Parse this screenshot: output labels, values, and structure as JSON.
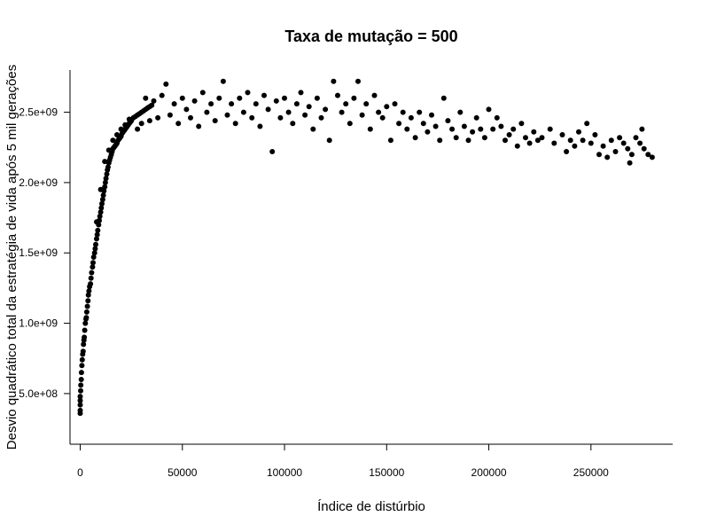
{
  "chart_data": {
    "type": "scatter",
    "title": "Taxa de mutação = 500",
    "xlabel": "Índice de distúrbio",
    "ylabel": "Desvio quadrático total da estratégia de vida após 5 mil gerações",
    "xlim": [
      -5000,
      290000
    ],
    "ylim": [
      140000000,
      2800000000
    ],
    "x_ticks": [
      0,
      50000,
      100000,
      150000,
      200000,
      250000
    ],
    "x_tick_labels": [
      "0",
      "50000",
      "100000",
      "150000",
      "200000",
      "250000"
    ],
    "y_ticks": [
      500000000,
      1000000000,
      1500000000,
      2000000000,
      2500000000
    ],
    "y_tick_labels": [
      "5.0e+08",
      "1.0e+09",
      "1.5e+09",
      "2.0e+09",
      "2.5e+09"
    ],
    "grid": false,
    "legend": "none",
    "marker_color": "#000000",
    "series": [
      {
        "points": [
          [
            0,
            360000000
          ],
          [
            0,
            380000000
          ],
          [
            0,
            420000000
          ],
          [
            0,
            450000000
          ],
          [
            0,
            480000000
          ],
          [
            200,
            520000000
          ],
          [
            300,
            560000000
          ],
          [
            500,
            600000000
          ],
          [
            600,
            650000000
          ],
          [
            800,
            700000000
          ],
          [
            1000,
            740000000
          ],
          [
            1200,
            780000000
          ],
          [
            1400,
            800000000
          ],
          [
            1600,
            850000000
          ],
          [
            1800,
            880000000
          ],
          [
            2000,
            900000000
          ],
          [
            2200,
            950000000
          ],
          [
            2500,
            1000000000
          ],
          [
            2800,
            1030000000
          ],
          [
            3000,
            1040000000
          ],
          [
            3200,
            1080000000
          ],
          [
            3500,
            1120000000
          ],
          [
            3800,
            1160000000
          ],
          [
            4000,
            1200000000
          ],
          [
            4300,
            1230000000
          ],
          [
            4600,
            1260000000
          ],
          [
            5000,
            1280000000
          ],
          [
            5300,
            1320000000
          ],
          [
            5600,
            1360000000
          ],
          [
            6000,
            1400000000
          ],
          [
            6300,
            1430000000
          ],
          [
            6600,
            1470000000
          ],
          [
            7000,
            1500000000
          ],
          [
            7300,
            1530000000
          ],
          [
            7600,
            1560000000
          ],
          [
            8000,
            1600000000
          ],
          [
            8300,
            1630000000
          ],
          [
            8600,
            1660000000
          ],
          [
            9000,
            1700000000
          ],
          [
            9300,
            1730000000
          ],
          [
            9600,
            1760000000
          ],
          [
            10000,
            1790000000
          ],
          [
            10300,
            1820000000
          ],
          [
            10600,
            1850000000
          ],
          [
            11000,
            1880000000
          ],
          [
            11300,
            1910000000
          ],
          [
            11600,
            1940000000
          ],
          [
            12000,
            1970000000
          ],
          [
            12300,
            2000000000
          ],
          [
            12600,
            2030000000
          ],
          [
            13000,
            2060000000
          ],
          [
            13300,
            2090000000
          ],
          [
            13600,
            2110000000
          ],
          [
            14000,
            2140000000
          ],
          [
            14400,
            2160000000
          ],
          [
            14800,
            2180000000
          ],
          [
            15200,
            2200000000
          ],
          [
            15600,
            2220000000
          ],
          [
            16000,
            2240000000
          ],
          [
            16500,
            2250000000
          ],
          [
            17000,
            2260000000
          ],
          [
            17500,
            2270000000
          ],
          [
            18000,
            2280000000
          ],
          [
            18500,
            2300000000
          ],
          [
            19000,
            2310000000
          ],
          [
            19500,
            2320000000
          ],
          [
            20000,
            2330000000
          ],
          [
            20500,
            2350000000
          ],
          [
            21000,
            2360000000
          ],
          [
            21500,
            2370000000
          ],
          [
            22000,
            2380000000
          ],
          [
            22500,
            2390000000
          ],
          [
            23000,
            2400000000
          ],
          [
            23500,
            2410000000
          ],
          [
            24000,
            2420000000
          ],
          [
            24500,
            2430000000
          ],
          [
            25000,
            2440000000
          ],
          [
            8000,
            1720000000
          ],
          [
            10000,
            1950000000
          ],
          [
            12000,
            2150000000
          ],
          [
            14000,
            2230000000
          ],
          [
            16000,
            2300000000
          ],
          [
            18000,
            2340000000
          ],
          [
            20000,
            2380000000
          ],
          [
            22000,
            2410000000
          ],
          [
            24000,
            2450000000
          ],
          [
            26000,
            2460000000
          ],
          [
            27000,
            2470000000
          ],
          [
            28000,
            2480000000
          ],
          [
            29000,
            2490000000
          ],
          [
            30000,
            2500000000
          ],
          [
            31000,
            2510000000
          ],
          [
            32000,
            2520000000
          ],
          [
            33000,
            2530000000
          ],
          [
            34000,
            2540000000
          ],
          [
            35000,
            2550000000
          ],
          [
            28000,
            2380000000
          ],
          [
            30000,
            2420000000
          ],
          [
            32000,
            2600000000
          ],
          [
            34000,
            2440000000
          ],
          [
            36000,
            2580000000
          ],
          [
            38000,
            2460000000
          ],
          [
            40000,
            2620000000
          ],
          [
            42000,
            2700000000
          ],
          [
            44000,
            2480000000
          ],
          [
            46000,
            2560000000
          ],
          [
            48000,
            2420000000
          ],
          [
            50000,
            2600000000
          ],
          [
            52000,
            2520000000
          ],
          [
            54000,
            2460000000
          ],
          [
            56000,
            2580000000
          ],
          [
            58000,
            2400000000
          ],
          [
            60000,
            2640000000
          ],
          [
            62000,
            2500000000
          ],
          [
            64000,
            2560000000
          ],
          [
            66000,
            2440000000
          ],
          [
            68000,
            2600000000
          ],
          [
            70000,
            2720000000
          ],
          [
            72000,
            2480000000
          ],
          [
            74000,
            2560000000
          ],
          [
            76000,
            2420000000
          ],
          [
            78000,
            2600000000
          ],
          [
            80000,
            2500000000
          ],
          [
            82000,
            2640000000
          ],
          [
            84000,
            2460000000
          ],
          [
            86000,
            2560000000
          ],
          [
            88000,
            2400000000
          ],
          [
            90000,
            2620000000
          ],
          [
            92000,
            2520000000
          ],
          [
            94000,
            2220000000
          ],
          [
            96000,
            2580000000
          ],
          [
            98000,
            2460000000
          ],
          [
            100000,
            2600000000
          ],
          [
            102000,
            2500000000
          ],
          [
            104000,
            2420000000
          ],
          [
            106000,
            2560000000
          ],
          [
            108000,
            2640000000
          ],
          [
            110000,
            2480000000
          ],
          [
            112000,
            2540000000
          ],
          [
            114000,
            2380000000
          ],
          [
            116000,
            2600000000
          ],
          [
            118000,
            2460000000
          ],
          [
            120000,
            2520000000
          ],
          [
            122000,
            2300000000
          ],
          [
            124000,
            2720000000
          ],
          [
            126000,
            2620000000
          ],
          [
            128000,
            2500000000
          ],
          [
            130000,
            2560000000
          ],
          [
            132000,
            2420000000
          ],
          [
            134000,
            2600000000
          ],
          [
            136000,
            2720000000
          ],
          [
            138000,
            2480000000
          ],
          [
            140000,
            2560000000
          ],
          [
            142000,
            2380000000
          ],
          [
            144000,
            2620000000
          ],
          [
            146000,
            2500000000
          ],
          [
            148000,
            2460000000
          ],
          [
            150000,
            2540000000
          ],
          [
            152000,
            2300000000
          ],
          [
            154000,
            2560000000
          ],
          [
            156000,
            2420000000
          ],
          [
            158000,
            2500000000
          ],
          [
            160000,
            2380000000
          ],
          [
            162000,
            2460000000
          ],
          [
            164000,
            2320000000
          ],
          [
            166000,
            2500000000
          ],
          [
            168000,
            2420000000
          ],
          [
            170000,
            2360000000
          ],
          [
            172000,
            2480000000
          ],
          [
            174000,
            2400000000
          ],
          [
            176000,
            2300000000
          ],
          [
            178000,
            2600000000
          ],
          [
            180000,
            2440000000
          ],
          [
            182000,
            2380000000
          ],
          [
            184000,
            2320000000
          ],
          [
            186000,
            2500000000
          ],
          [
            188000,
            2400000000
          ],
          [
            190000,
            2300000000
          ],
          [
            192000,
            2360000000
          ],
          [
            194000,
            2460000000
          ],
          [
            196000,
            2380000000
          ],
          [
            198000,
            2320000000
          ],
          [
            200000,
            2520000000
          ],
          [
            202000,
            2380000000
          ],
          [
            204000,
            2460000000
          ],
          [
            206000,
            2400000000
          ],
          [
            208000,
            2300000000
          ],
          [
            210000,
            2340000000
          ],
          [
            212000,
            2380000000
          ],
          [
            214000,
            2260000000
          ],
          [
            216000,
            2420000000
          ],
          [
            218000,
            2320000000
          ],
          [
            220000,
            2280000000
          ],
          [
            222000,
            2360000000
          ],
          [
            224000,
            2300000000
          ],
          [
            226000,
            2320000000
          ],
          [
            230000,
            2380000000
          ],
          [
            232000,
            2280000000
          ],
          [
            236000,
            2340000000
          ],
          [
            238000,
            2220000000
          ],
          [
            240000,
            2300000000
          ],
          [
            242000,
            2260000000
          ],
          [
            244000,
            2360000000
          ],
          [
            246000,
            2300000000
          ],
          [
            248000,
            2420000000
          ],
          [
            250000,
            2280000000
          ],
          [
            252000,
            2340000000
          ],
          [
            254000,
            2200000000
          ],
          [
            256000,
            2260000000
          ],
          [
            258000,
            2180000000
          ],
          [
            260000,
            2300000000
          ],
          [
            262000,
            2220000000
          ],
          [
            264000,
            2320000000
          ],
          [
            266000,
            2280000000
          ],
          [
            268000,
            2240000000
          ],
          [
            269000,
            2140000000
          ],
          [
            270000,
            2200000000
          ],
          [
            272000,
            2320000000
          ],
          [
            274000,
            2280000000
          ],
          [
            275000,
            2380000000
          ],
          [
            276000,
            2240000000
          ],
          [
            278000,
            2200000000
          ],
          [
            280000,
            2180000000
          ]
        ]
      }
    ]
  }
}
